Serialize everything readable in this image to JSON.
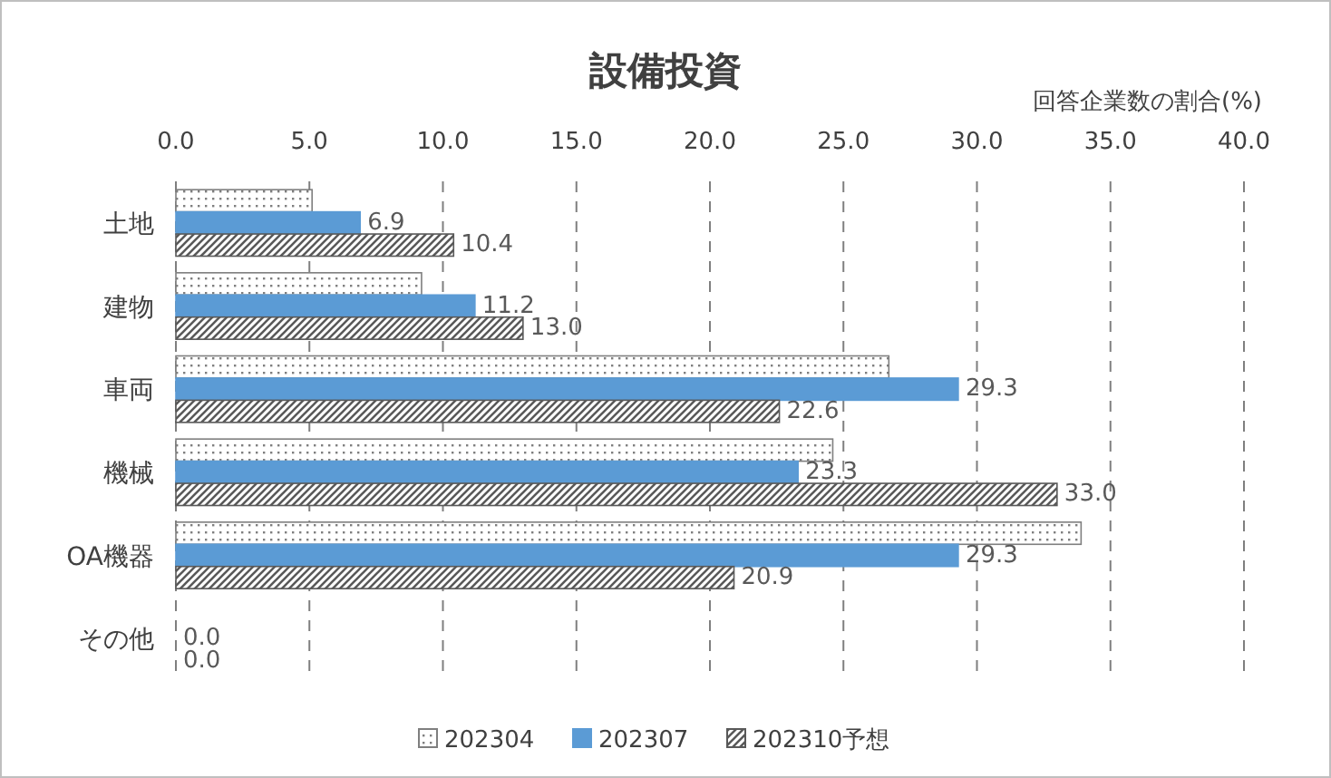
{
  "chart_data": {
    "type": "bar",
    "orientation": "horizontal",
    "title": "設備投資",
    "annotations": [
      "回答企業数の割合(%)"
    ],
    "categories": [
      "土地",
      "建物",
      "車両",
      "機械",
      "OA機器",
      "その他"
    ],
    "series": [
      {
        "name": "202304",
        "color": "#7f7f7f",
        "values": [
          5.1,
          9.2,
          26.7,
          24.6,
          33.9,
          0
        ]
      },
      {
        "name": "202307",
        "color": "#5b9bd5",
        "values": [
          6.9,
          11.2,
          29.3,
          23.3,
          29.3,
          0
        ],
        "value_labels": [
          "6.9",
          "11.2",
          "29.3",
          "23.3",
          "29.3",
          "0.0"
        ]
      },
      {
        "name": "202310予想",
        "color": "#595959",
        "values": [
          10.4,
          13.0,
          22.6,
          33.0,
          20.9,
          0
        ],
        "value_labels": [
          "10.4",
          "13.0",
          "22.6",
          "33.0",
          "20.9",
          "0.0"
        ]
      }
    ],
    "xlim": [
      0,
      40
    ],
    "xticks": [
      {
        "value": 0,
        "label": "0.0"
      },
      {
        "value": 5,
        "label": "5.0"
      },
      {
        "value": 10,
        "label": "10.0"
      },
      {
        "value": 15,
        "label": "15.0"
      },
      {
        "value": 20,
        "label": "20.0"
      },
      {
        "value": 25,
        "label": "25.0"
      },
      {
        "value": 30,
        "label": "30.0"
      },
      {
        "value": 35,
        "label": "35.0"
      },
      {
        "value": 40,
        "label": "40.0"
      }
    ],
    "grid": "x",
    "legend": "bottom"
  }
}
